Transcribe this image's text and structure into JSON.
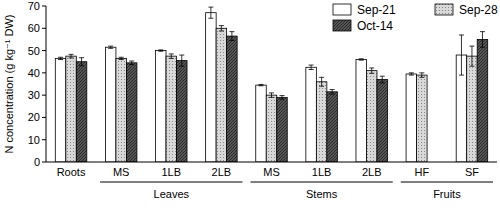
{
  "chart_data": {
    "type": "bar",
    "y_label": "N concentration (g kg⁻¹ DW)",
    "categories": [
      "Roots",
      "MS",
      "1LB",
      "2LB",
      "MS",
      "1LB",
      "2LB",
      "HF",
      "SF"
    ],
    "category_groups": [
      {
        "label": "Leaves",
        "span": [
          1,
          3
        ]
      },
      {
        "label": "Stems",
        "span": [
          4,
          6
        ]
      },
      {
        "label": "Fruits",
        "span": [
          7,
          8
        ]
      }
    ],
    "series": [
      {
        "name": "Sep-21",
        "color": "#ffffff",
        "values": [
          46.5,
          51.5,
          50,
          67,
          34.5,
          42.5,
          46,
          39.5,
          48
        ],
        "errors": [
          0.5,
          0.5,
          0.3,
          2.5,
          0.3,
          1,
          0.3,
          0.5,
          9
        ]
      },
      {
        "name": "Sep-28",
        "color": "#d9d9d9",
        "values": [
          47.5,
          46.5,
          47.5,
          60,
          30,
          36,
          41,
          39,
          47.5
        ],
        "errors": [
          0.8,
          0.5,
          1,
          1.2,
          1,
          2,
          1.2,
          1,
          4.5
        ]
      },
      {
        "name": "Oct-14",
        "color": "#555555",
        "values": [
          45,
          44.5,
          45.5,
          56.5,
          29,
          31.5,
          37,
          null,
          55
        ],
        "errors": [
          1.8,
          0.8,
          2.5,
          2,
          0.8,
          1,
          1.5,
          null,
          3.5
        ]
      }
    ],
    "ylim": [
      0,
      70
    ],
    "yticks": [
      0,
      10,
      20,
      30,
      40,
      50,
      60,
      70
    ],
    "legend": "upper right",
    "grid": false
  }
}
